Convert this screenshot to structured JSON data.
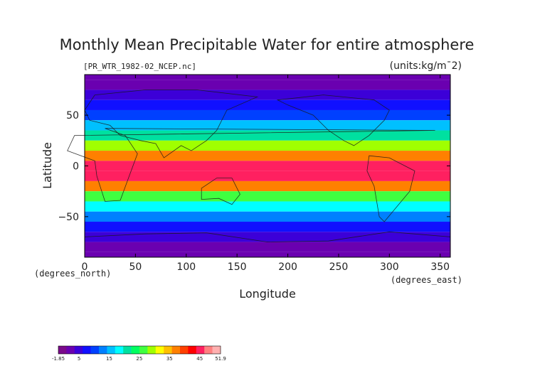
{
  "chart_data": {
    "type": "heatmap",
    "title": "Monthly Mean Precipitable Water for entire atmosphere",
    "source_label": "[PR_WTR_1982-02_NCEP.nc]",
    "units_label": "(units:kg/m¯2)",
    "xlabel": "Longitude",
    "ylabel": "Latitude",
    "x_unit_label": "(degrees_east)",
    "y_unit_label": "(degrees_north)",
    "xlim": [
      0,
      360
    ],
    "ylim": [
      -90,
      90
    ],
    "x_ticks": [
      0,
      50,
      100,
      150,
      200,
      250,
      300,
      350
    ],
    "y_ticks": [
      -50,
      0,
      50
    ],
    "colorbar": {
      "min": -1.85,
      "max": 51.9,
      "tick_labels": [
        "-1.85",
        "5",
        "15",
        "25",
        "35",
        "45",
        "51.9"
      ],
      "tick_values": [
        -1.85,
        5,
        15,
        25,
        35,
        45,
        51.9
      ],
      "colors": [
        "#7a0a8a",
        "#6a00b0",
        "#3c00d8",
        "#1010ff",
        "#0040ff",
        "#0080ff",
        "#00c0ff",
        "#00ffff",
        "#00e0a0",
        "#00ff60",
        "#40ff40",
        "#a0ff00",
        "#ffff00",
        "#ffc000",
        "#ff8000",
        "#ff4000",
        "#ff0000",
        "#ff2060",
        "#ff8080",
        "#ffb0b0"
      ]
    },
    "zonal_profile": [
      {
        "lat": 90,
        "value": 2
      },
      {
        "lat": 80,
        "value": 3
      },
      {
        "lat": 70,
        "value": 5
      },
      {
        "lat": 60,
        "value": 8
      },
      {
        "lat": 50,
        "value": 11
      },
      {
        "lat": 40,
        "value": 16
      },
      {
        "lat": 30,
        "value": 22
      },
      {
        "lat": 20,
        "value": 30
      },
      {
        "lat": 10,
        "value": 38
      },
      {
        "lat": 0,
        "value": 44
      },
      {
        "lat": -10,
        "value": 45
      },
      {
        "lat": -20,
        "value": 38
      },
      {
        "lat": -30,
        "value": 27
      },
      {
        "lat": -40,
        "value": 18
      },
      {
        "lat": -50,
        "value": 12
      },
      {
        "lat": -60,
        "value": 8
      },
      {
        "lat": -70,
        "value": 4
      },
      {
        "lat": -80,
        "value": 2
      },
      {
        "lat": -90,
        "value": 1
      }
    ],
    "grid": false
  }
}
